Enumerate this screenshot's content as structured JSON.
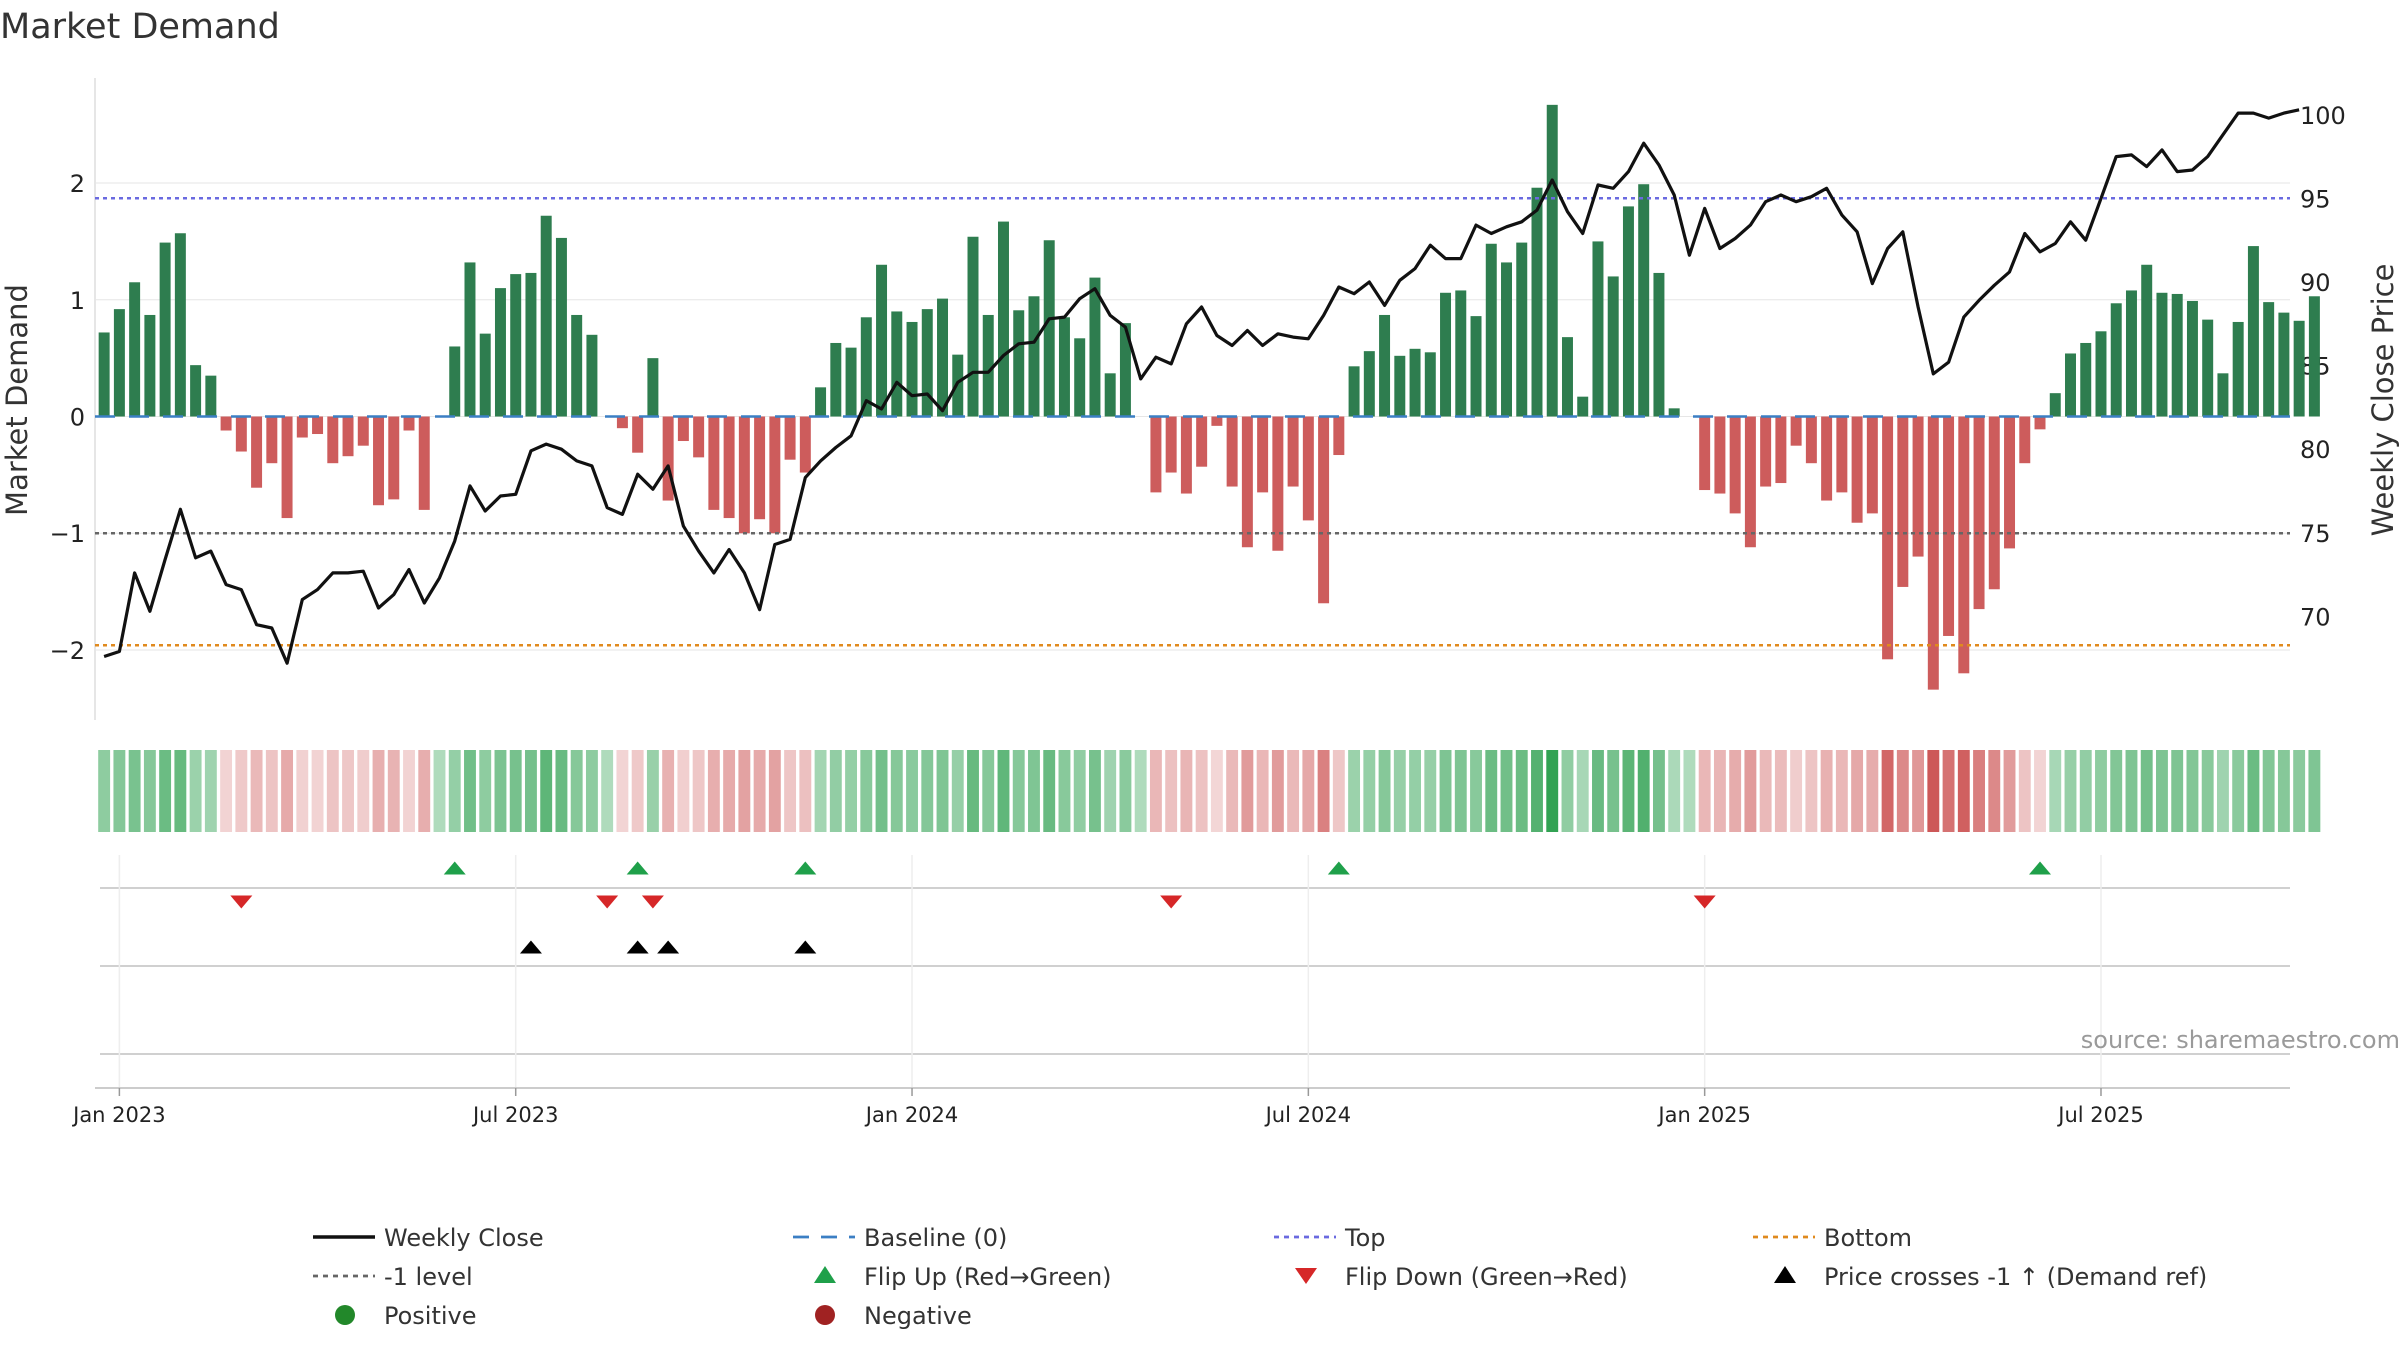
{
  "chart_data": {
    "type": "bar",
    "title": "Market Demand",
    "ylabel": "Market Demand",
    "y2label": "Weekly Close Price",
    "ylim": [
      -2.6,
      2.9
    ],
    "y2lim": [
      63.8,
      102.2
    ],
    "yticks": [
      {
        "v": 2,
        "label": "2"
      },
      {
        "v": 1,
        "label": "1"
      },
      {
        "v": 0,
        "label": "0"
      },
      {
        "v": -1,
        "label": "−1"
      },
      {
        "v": -2,
        "label": "−2"
      }
    ],
    "y2ticks": [
      {
        "v": 100,
        "label": "100"
      },
      {
        "v": 95,
        "label": "95"
      },
      {
        "v": 90,
        "label": "90"
      },
      {
        "v": 85,
        "label": "85"
      },
      {
        "v": 80,
        "label": "80"
      },
      {
        "v": 75,
        "label": "75"
      },
      {
        "v": 70,
        "label": "70"
      }
    ],
    "xticks": [
      {
        "week": 1,
        "label": "Jan 2023"
      },
      {
        "week": 27,
        "label": "Jul 2023"
      },
      {
        "week": 53,
        "label": "Jan 2024"
      },
      {
        "week": 79,
        "label": "Jul 2024"
      },
      {
        "week": 105,
        "label": "Jan 2025"
      },
      {
        "week": 131,
        "label": "Jul 2025"
      }
    ],
    "levels": {
      "top": 1.87,
      "bottom": -1.96,
      "minus_one": -1,
      "baseline": 0
    },
    "demand": [
      0.72,
      0.92,
      1.15,
      0.87,
      1.49,
      1.57,
      0.44,
      0.35,
      -0.12,
      -0.3,
      -0.61,
      -0.4,
      -0.87,
      -0.18,
      -0.15,
      -0.4,
      -0.34,
      -0.25,
      -0.76,
      -0.71,
      -0.12,
      -0.8,
      0,
      0.6,
      1.32,
      0.71,
      1.1,
      1.22,
      1.23,
      1.72,
      1.53,
      0.87,
      0.7,
      0,
      -0.1,
      -0.31,
      0.5,
      -0.72,
      -0.21,
      -0.35,
      -0.8,
      -0.87,
      -1,
      -0.88,
      -1,
      -0.37,
      -0.48,
      0.25,
      0.63,
      0.59,
      0.85,
      1.3,
      0.9,
      0.81,
      0.92,
      1.01,
      0.53,
      1.54,
      0.87,
      1.67,
      0.91,
      1.03,
      1.51,
      0.85,
      0.67,
      1.19,
      0.37,
      0.8,
      0,
      -0.65,
      -0.48,
      -0.66,
      -0.43,
      -0.08,
      -0.6,
      -1.12,
      -0.65,
      -1.15,
      -0.6,
      -0.89,
      -1.6,
      -0.33,
      0.43,
      0.56,
      0.87,
      0.52,
      0.58,
      0.55,
      1.06,
      1.08,
      0.86,
      1.48,
      1.32,
      1.49,
      1.96,
      2.67,
      0.68,
      0.17,
      1.5,
      1.2,
      1.8,
      1.99,
      1.23,
      0.07,
      0,
      -0.63,
      -0.66,
      -0.83,
      -1.12,
      -0.6,
      -0.57,
      -0.25,
      -0.4,
      -0.72,
      -0.65,
      -0.91,
      -0.83,
      -2.08,
      -1.46,
      -1.2,
      -2.34,
      -1.88,
      -2.2,
      -1.65,
      -1.48,
      -1.13,
      -0.4,
      -0.11,
      0.2,
      0.54,
      0.63,
      0.73,
      0.97,
      1.08,
      1.3,
      1.06,
      1.05,
      0.99,
      0.83,
      0.37,
      0.81,
      1.46,
      0.98,
      0.89,
      0.82,
      1.03
    ],
    "close": [
      67.6,
      67.9,
      72.6,
      70.3,
      73.4,
      76.4,
      73.5,
      73.9,
      71.9,
      71.6,
      69.5,
      69.3,
      67.2,
      71.0,
      71.6,
      72.6,
      72.6,
      72.7,
      70.5,
      71.3,
      72.8,
      70.8,
      72.3,
      74.5,
      77.8,
      76.3,
      77.2,
      77.3,
      79.9,
      80.3,
      80.0,
      79.3,
      79.0,
      76.5,
      76.1,
      78.5,
      77.6,
      79.0,
      75.4,
      73.9,
      72.6,
      74.0,
      72.6,
      70.4,
      74.3,
      74.6,
      78.3,
      79.3,
      80.1,
      80.8,
      82.9,
      82.4,
      84.0,
      83.2,
      83.3,
      82.3,
      84.0,
      84.6,
      84.6,
      85.6,
      86.3,
      86.4,
      87.8,
      87.9,
      89.0,
      89.6,
      88.0,
      87.3,
      84.2,
      85.5,
      85.1,
      87.5,
      88.5,
      86.8,
      86.2,
      87.1,
      86.2,
      86.9,
      86.7,
      86.6,
      88.0,
      89.7,
      89.3,
      90.0,
      88.6,
      90.1,
      90.8,
      92.2,
      91.4,
      91.4,
      93.4,
      92.9,
      93.3,
      93.6,
      94.3,
      96.1,
      94.2,
      92.9,
      95.8,
      95.6,
      96.6,
      98.3,
      97.0,
      95.2,
      91.6,
      94.4,
      92.0,
      92.6,
      93.4,
      94.8,
      95.2,
      94.8,
      95.1,
      95.6,
      94.0,
      93.0,
      89.9,
      92.0,
      93.0,
      88.5,
      84.5,
      85.2,
      87.9,
      88.9,
      89.8,
      90.6,
      92.9,
      91.8,
      92.3,
      93.6,
      92.5,
      95.0,
      97.5,
      97.6,
      96.9,
      97.9,
      96.6,
      96.7,
      97.5,
      98.8,
      100.1,
      100.1,
      99.8,
      100.1,
      100.3
    ],
    "flip_up_weeks": [
      23,
      35,
      46,
      81,
      127
    ],
    "flip_down_weeks": [
      9,
      33,
      36,
      70,
      105
    ],
    "price_cross_weeks": [
      28,
      35,
      37,
      46
    ],
    "x_range": [
      -0.6,
      143.4
    ]
  },
  "legend": [
    {
      "label": "Weekly Close",
      "kind": "line-solid",
      "color": "#111111"
    },
    {
      "label": "Baseline (0)",
      "kind": "line-dash",
      "color": "#3b7fc4"
    },
    {
      "label": "Top",
      "kind": "line-dot",
      "color": "#6a6ae0"
    },
    {
      "label": "Bottom",
      "kind": "line-dot",
      "color": "#e08a1e"
    },
    {
      "label": "-1 level",
      "kind": "line-dot",
      "color": "#666666"
    },
    {
      "label": "Flip Up (Red→Green)",
      "kind": "tri-up",
      "color": "#1fa04a"
    },
    {
      "label": "Flip Down (Green→Red)",
      "kind": "tri-down",
      "color": "#d62728"
    },
    {
      "label": "Price crosses -1 ↑ (Demand ref)",
      "kind": "tri-up",
      "color": "#000000"
    },
    {
      "label": "Positive",
      "kind": "dot",
      "color": "#22882a"
    },
    {
      "label": "Negative",
      "kind": "dot",
      "color": "#a02222"
    }
  ],
  "source": "source: sharemaestro.com",
  "colors": {
    "positive": "#2e7d4f",
    "negative": "#cd5c5c",
    "close": "#111111",
    "grid": "#e6e6e6"
  }
}
